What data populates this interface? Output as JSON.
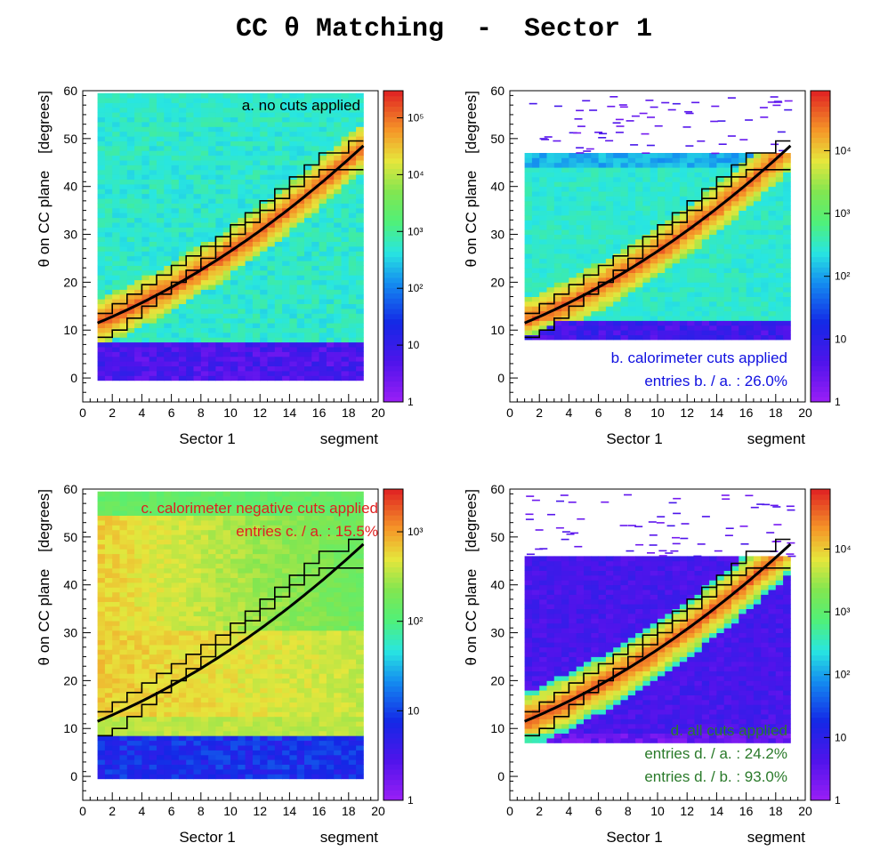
{
  "page": {
    "title": "CC θ Matching  -  Sector 1"
  },
  "chart_data": [
    {
      "type": "heatmap",
      "panel": "a",
      "title": "",
      "annotations": [
        {
          "text": "a. no cuts applied",
          "color": "#000000"
        }
      ],
      "xlabel_left": "Sector 1",
      "xlabel_right": "segment",
      "ylabel": "θ on CC plane    [degrees]",
      "xlim": [
        0,
        20
      ],
      "ylim": [
        -5,
        60
      ],
      "xticks": [
        "0",
        "2",
        "4",
        "6",
        "8",
        "10",
        "12",
        "14",
        "16",
        "18",
        "20"
      ],
      "yticks": [
        "0",
        "10",
        "20",
        "30",
        "40",
        "50",
        "60"
      ],
      "scale": "log",
      "zlim": [
        1,
        300000
      ],
      "colorbar_ticks": [
        "1",
        "10",
        "10²",
        "10³",
        "10⁴",
        "10⁵"
      ],
      "background_level": 0.5,
      "band_level": 0.95,
      "data_extent_y": [
        -0.5,
        59.5
      ],
      "low_region_y": [
        -0.5,
        7.0
      ],
      "low_region_level": 0.13
    },
    {
      "type": "heatmap",
      "panel": "b",
      "title": "",
      "annotations": [
        {
          "text": "b. calorimeter cuts applied",
          "color": "#1010e0"
        },
        {
          "text": "entries b. / a. : 26.0%",
          "color": "#1010e0"
        }
      ],
      "xlabel_left": "Sector 1",
      "xlabel_right": "segment",
      "ylabel": "θ on CC plane    [degrees]",
      "xlim": [
        0,
        20
      ],
      "ylim": [
        -5,
        60
      ],
      "xticks": [
        "0",
        "2",
        "4",
        "6",
        "8",
        "10",
        "12",
        "14",
        "16",
        "18",
        "20"
      ],
      "yticks": [
        "0",
        "10",
        "20",
        "30",
        "40",
        "50",
        "60"
      ],
      "scale": "log",
      "zlim": [
        1,
        90000
      ],
      "colorbar_ticks": [
        "1",
        "10",
        "10²",
        "10³",
        "10⁴"
      ],
      "background_level": 0.42,
      "band_level": 0.95,
      "data_extent_y": [
        8.0,
        47.0
      ],
      "low_region_y": [
        8.0,
        12.0
      ],
      "low_region_level": 0.15
    },
    {
      "type": "heatmap",
      "panel": "c",
      "title": "",
      "annotations": [
        {
          "text": "c. calorimeter negative cuts applied",
          "color": "#e02020"
        },
        {
          "text": "entries c. / a. : 15.5%",
          "color": "#e02020"
        }
      ],
      "xlabel_left": "Sector 1",
      "xlabel_right": "segment",
      "ylabel": "θ on CC plane    [degrees]",
      "xlim": [
        0,
        20
      ],
      "ylim": [
        -5,
        60
      ],
      "xticks": [
        "0",
        "2",
        "4",
        "6",
        "8",
        "10",
        "12",
        "14",
        "16",
        "18",
        "20"
      ],
      "yticks": [
        "0",
        "10",
        "20",
        "30",
        "40",
        "50",
        "60"
      ],
      "scale": "log",
      "zlim": [
        1,
        3000
      ],
      "colorbar_ticks": [
        "1",
        "10",
        "10²",
        "10³"
      ],
      "background_level": 0.82,
      "band_level": 0.82,
      "data_extent_y": [
        -0.5,
        59.5
      ],
      "low_region_y": [
        -0.5,
        8.0
      ],
      "low_region_level": 0.25
    },
    {
      "type": "heatmap",
      "panel": "d",
      "title": "",
      "annotations": [
        {
          "text": "d. all cuts applied",
          "color": "#2a7a2a"
        },
        {
          "text": "entries d. / a. : 24.2%",
          "color": "#2a7a2a"
        },
        {
          "text": "entries d. / b. : 93.0%",
          "color": "#2a7a2a"
        }
      ],
      "xlabel_left": "Sector 1",
      "xlabel_right": "segment",
      "ylabel": "θ on CC plane    [degrees]",
      "xlim": [
        0,
        20
      ],
      "ylim": [
        -5,
        60
      ],
      "xticks": [
        "0",
        "2",
        "4",
        "6",
        "8",
        "10",
        "12",
        "14",
        "16",
        "18",
        "20"
      ],
      "yticks": [
        "0",
        "10",
        "20",
        "30",
        "40",
        "50",
        "60"
      ],
      "scale": "log",
      "zlim": [
        1,
        90000
      ],
      "colorbar_ticks": [
        "1",
        "10",
        "10²",
        "10³",
        "10⁴"
      ],
      "background_level": 0.14,
      "band_level": 0.95,
      "data_extent_y": [
        7.0,
        46.0
      ],
      "low_region_y": [
        7.0,
        9.0
      ],
      "low_region_level": 0.08
    }
  ],
  "fit_curve": {
    "x": [
      1,
      19
    ],
    "theta": [
      11.5,
      48.5
    ]
  },
  "cut_lines": {
    "segment_edges": [
      1,
      2,
      3,
      4,
      5,
      6,
      7,
      8,
      9,
      10,
      11,
      12,
      13,
      14,
      15,
      16,
      17,
      18,
      19
    ],
    "upper": [
      13.5,
      15.5,
      17.5,
      19.5,
      21.5,
      23.5,
      25.5,
      27.5,
      29.5,
      32.0,
      34.5,
      37.0,
      39.5,
      42.0,
      44.5,
      47.0,
      47.0,
      49.5
    ],
    "lower": [
      8.5,
      10.0,
      12.5,
      15.0,
      17.5,
      20.0,
      22.5,
      25.0,
      27.5,
      30.0,
      32.5,
      35.0,
      37.5,
      40.0,
      42.0,
      43.5,
      43.5,
      43.5
    ]
  }
}
